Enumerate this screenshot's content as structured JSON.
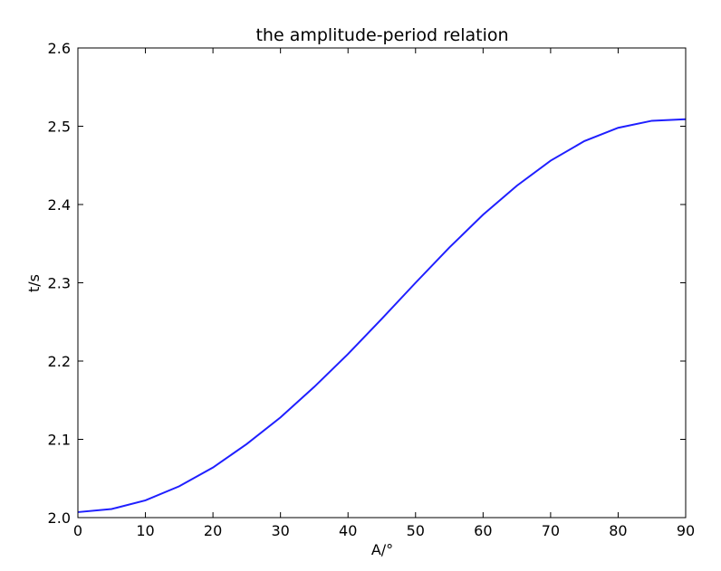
{
  "chart_data": {
    "type": "line",
    "title": "the amplitude-period relation",
    "xlabel": "A/°",
    "ylabel": "t/s",
    "xlim": [
      0,
      90
    ],
    "ylim": [
      2.0,
      2.6
    ],
    "xticks": [
      "0",
      "10",
      "20",
      "30",
      "40",
      "50",
      "60",
      "70",
      "80",
      "90"
    ],
    "yticks": [
      "2.0",
      "2.1",
      "2.2",
      "2.3",
      "2.4",
      "2.5",
      "2.6"
    ],
    "grid": false,
    "legend": "none",
    "series": [
      {
        "color": "#1f1fff",
        "x": [
          0,
          5,
          10,
          15,
          20,
          25,
          30,
          35,
          40,
          45,
          50,
          55,
          60,
          65,
          70,
          75,
          80,
          85,
          90
        ],
        "y": [
          2.007,
          2.011,
          2.022,
          2.04,
          2.064,
          2.094,
          2.128,
          2.167,
          2.209,
          2.254,
          2.3,
          2.345,
          2.387,
          2.424,
          2.456,
          2.481,
          2.498,
          2.507,
          2.509
        ]
      }
    ]
  }
}
